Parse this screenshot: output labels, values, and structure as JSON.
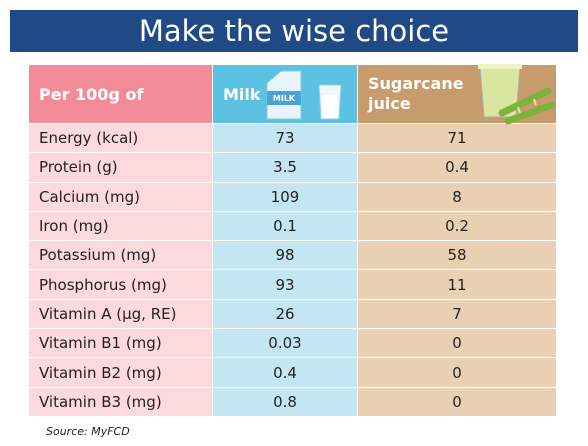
{
  "title": "Make the wise choice",
  "table": {
    "header": [
      "Per 100g of",
      "Milk",
      "Sugarcane juice"
    ],
    "rows": [
      [
        "Energy (kcal)",
        "73",
        "71"
      ],
      [
        "Protein (g)",
        "3.5",
        "0.4"
      ],
      [
        "Calcium (mg)",
        "109",
        "8"
      ],
      [
        "Iron (mg)",
        "0.1",
        "0.2"
      ],
      [
        "Potassium (mg)",
        "98",
        "58"
      ],
      [
        "Phosphorus (mg)",
        "93",
        "11"
      ],
      [
        "Vitamin A (µg, RE)",
        "26",
        "7"
      ],
      [
        "Vitamin B1 (mg)",
        "0.03",
        "0"
      ],
      [
        "Vitamin B2 (mg)",
        "0.4",
        "0"
      ],
      [
        "Vitamin B3 (mg)",
        "0.8",
        "0"
      ]
    ]
  },
  "source": "Source: MyFCD"
}
